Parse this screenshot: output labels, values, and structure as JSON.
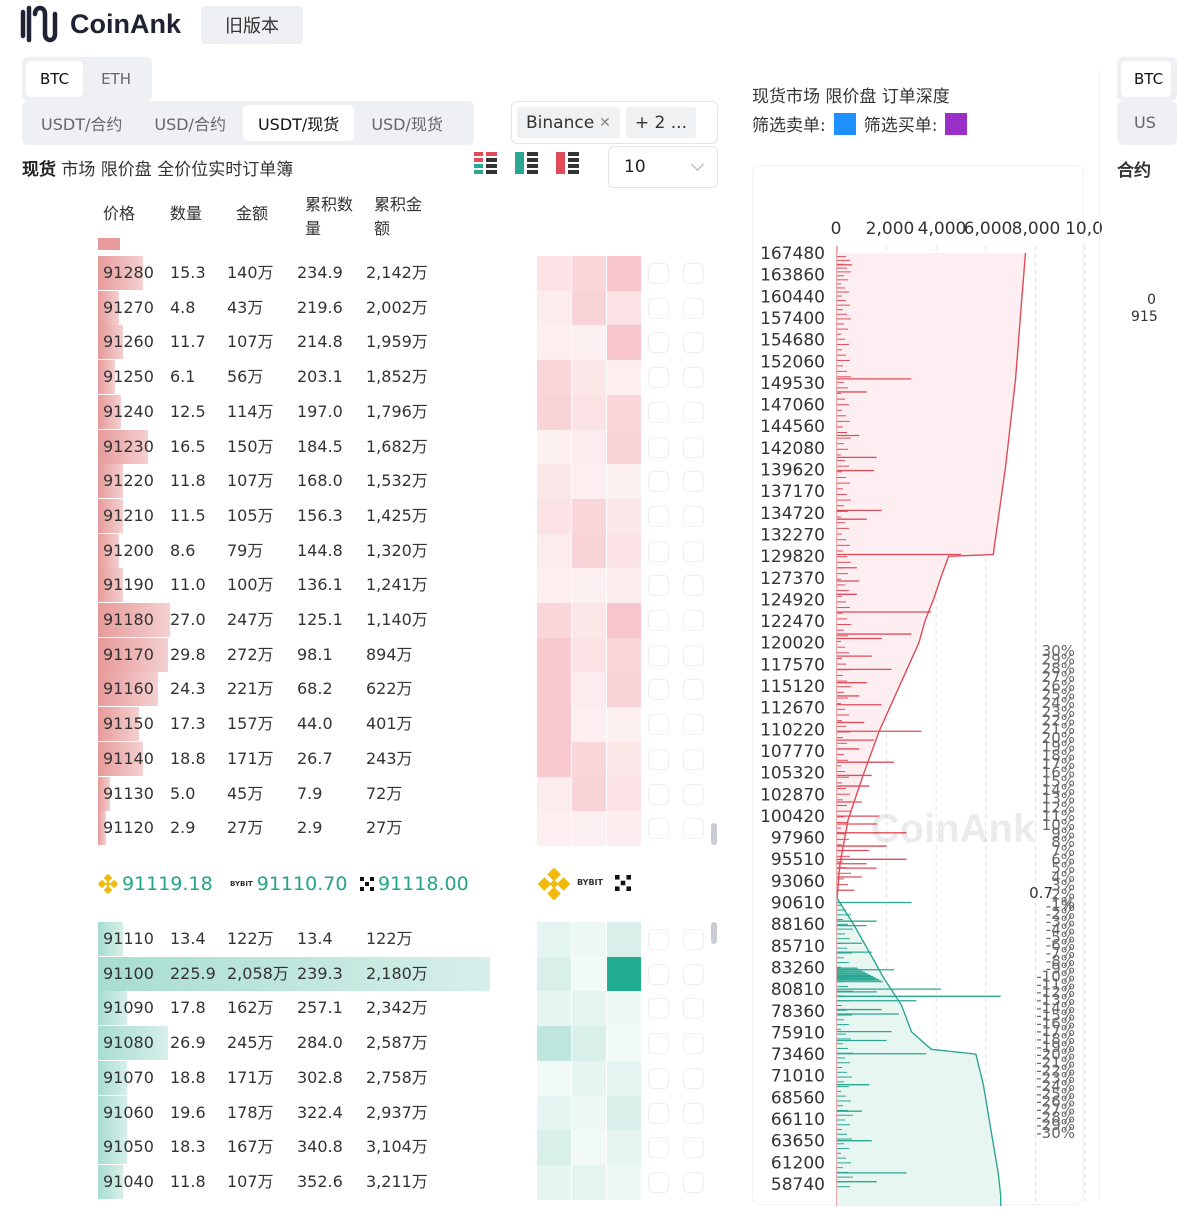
{
  "header": {
    "logo_text": "CoinAnk",
    "old_version": "旧版本"
  },
  "coin_tabs": [
    {
      "label": "BTC",
      "active": true
    },
    {
      "label": "ETH",
      "active": false
    }
  ],
  "market_tabs": [
    {
      "label": "USDT/合约",
      "active": false
    },
    {
      "label": "USD/合约",
      "active": false
    },
    {
      "label": "USDT/现货",
      "active": true
    },
    {
      "label": "USD/现货",
      "active": false
    }
  ],
  "exchange_filter": {
    "tag": "Binance",
    "more": "+ 2 ..."
  },
  "panel": {
    "title_bold": "现货",
    "title_rest": " 市场 限价盘 全价位实时订单簿",
    "depth_step": "10"
  },
  "columns": {
    "price": "价格",
    "qty": "数量",
    "amount": "金额",
    "cum_qty": "累积数量",
    "cum_amount": "累积金额"
  },
  "asks": [
    {
      "price": "91280",
      "qty": "15.3",
      "amount": "140万",
      "cum_qty": "234.9",
      "cum_amount": "2,142万",
      "bar": 0.11
    },
    {
      "price": "91270",
      "qty": "4.8",
      "amount": "43万",
      "cum_qty": "219.6",
      "cum_amount": "2,002万",
      "bar": 0.05
    },
    {
      "price": "91260",
      "qty": "11.7",
      "amount": "107万",
      "cum_qty": "214.8",
      "cum_amount": "1,959万",
      "bar": 0.06
    },
    {
      "price": "91250",
      "qty": "6.1",
      "amount": "56万",
      "cum_qty": "203.1",
      "cum_amount": "1,852万",
      "bar": 0.04
    },
    {
      "price": "91240",
      "qty": "12.5",
      "amount": "114万",
      "cum_qty": "197.0",
      "cum_amount": "1,796万",
      "bar": 0.055
    },
    {
      "price": "91230",
      "qty": "16.5",
      "amount": "150万",
      "cum_qty": "184.5",
      "cum_amount": "1,682万",
      "bar": 0.12
    },
    {
      "price": "91220",
      "qty": "11.8",
      "amount": "107万",
      "cum_qty": "168.0",
      "cum_amount": "1,532万",
      "bar": 0.06
    },
    {
      "price": "91210",
      "qty": "11.5",
      "amount": "105万",
      "cum_qty": "156.3",
      "cum_amount": "1,425万",
      "bar": 0.06
    },
    {
      "price": "91200",
      "qty": "8.6",
      "amount": "79万",
      "cum_qty": "144.8",
      "cum_amount": "1,320万",
      "bar": 0.05
    },
    {
      "price": "91190",
      "qty": "11.0",
      "amount": "100万",
      "cum_qty": "136.1",
      "cum_amount": "1,241万",
      "bar": 0.06
    },
    {
      "price": "91180",
      "qty": "27.0",
      "amount": "247万",
      "cum_qty": "125.1",
      "cum_amount": "1,140万",
      "bar": 0.175
    },
    {
      "price": "91170",
      "qty": "29.8",
      "amount": "272万",
      "cum_qty": "98.1",
      "cum_amount": "894万",
      "bar": 0.17
    },
    {
      "price": "91160",
      "qty": "24.3",
      "amount": "221万",
      "cum_qty": "68.2",
      "cum_amount": "622万",
      "bar": 0.145
    },
    {
      "price": "91150",
      "qty": "17.3",
      "amount": "157万",
      "cum_qty": "44.0",
      "cum_amount": "401万",
      "bar": 0.1
    },
    {
      "price": "91140",
      "qty": "18.8",
      "amount": "171万",
      "cum_qty": "26.7",
      "cum_amount": "243万",
      "bar": 0.11
    },
    {
      "price": "91130",
      "qty": "5.0",
      "amount": "45万",
      "cum_qty": "7.9",
      "cum_amount": "72万",
      "bar": 0.03
    },
    {
      "price": "91120",
      "qty": "2.9",
      "amount": "27万",
      "cum_qty": "2.9",
      "cum_amount": "27万",
      "bar": 0.02
    }
  ],
  "mid_prices": [
    {
      "exchange": "binance",
      "price": "91119.18"
    },
    {
      "exchange": "bybit",
      "price": "91110.70"
    },
    {
      "exchange": "okx",
      "price": "91118.00"
    }
  ],
  "bids": [
    {
      "price": "91110",
      "qty": "13.4",
      "amount": "122万",
      "cum_qty": "13.4",
      "cum_amount": "122万",
      "bar": 0.06
    },
    {
      "price": "91100",
      "qty": "225.9",
      "amount": "2,058万",
      "cum_qty": "239.3",
      "cum_amount": "2,180万",
      "bar": 0.95
    },
    {
      "price": "91090",
      "qty": "17.8",
      "amount": "162万",
      "cum_qty": "257.1",
      "cum_amount": "2,342万",
      "bar": 0.07
    },
    {
      "price": "91080",
      "qty": "26.9",
      "amount": "245万",
      "cum_qty": "284.0",
      "cum_amount": "2,587万",
      "bar": 0.17
    },
    {
      "price": "91070",
      "qty": "18.8",
      "amount": "171万",
      "cum_qty": "302.8",
      "cum_amount": "2,758万",
      "bar": 0.07
    },
    {
      "price": "91060",
      "qty": "19.6",
      "amount": "178万",
      "cum_qty": "322.4",
      "cum_amount": "2,937万",
      "bar": 0.07
    },
    {
      "price": "91050",
      "qty": "18.3",
      "amount": "167万",
      "cum_qty": "340.8",
      "cum_amount": "3,104万",
      "bar": 0.07
    },
    {
      "price": "91040",
      "qty": "11.8",
      "amount": "107万",
      "cum_qty": "352.6",
      "cum_amount": "3,211万",
      "bar": 0.06
    }
  ],
  "depth_chart": {
    "title": "现货市场 限价盘 订单深度",
    "sell_filter_label": "筛选卖单:",
    "buy_filter_label": "筛选买单:",
    "sell_color": "#1e90ff",
    "buy_color": "#9b30c8",
    "ask_color": "#e04b5a",
    "bid_color": "#2aa792",
    "watermark": "CoinAnk"
  },
  "chart_data": {
    "type": "bar",
    "orientation": "horizontal",
    "x_ticks": [
      "0",
      "2,000",
      "4,000",
      "6,000",
      "8,000",
      "10,0"
    ],
    "xlim": [
      0,
      10000
    ],
    "y_ticks": [
      "167480",
      "163860",
      "160440",
      "157400",
      "154680",
      "152060",
      "149530",
      "147060",
      "144560",
      "142080",
      "139620",
      "137170",
      "134720",
      "132270",
      "129820",
      "127370",
      "124920",
      "122470",
      "120020",
      "117570",
      "115120",
      "112670",
      "110220",
      "107770",
      "105320",
      "102870",
      "100420",
      "97960",
      "95510",
      "93060",
      "90610",
      "88160",
      "85710",
      "83260",
      "80810",
      "78360",
      "75910",
      "73460",
      "71010",
      "68560",
      "66110",
      "63650",
      "61200",
      "58740"
    ],
    "ylim": [
      57000,
      169000
    ],
    "mid_price": 91115,
    "current_label": "0.7",
    "ask_pct_labels": [
      "30%",
      "29%",
      "28%",
      "27%",
      "26%",
      "25%",
      "24%",
      "23%",
      "22%",
      "21%",
      "20%",
      "19%",
      "18%",
      "17%",
      "16%",
      "15%",
      "14%",
      "13%",
      "12%",
      "11%",
      "10%",
      "9%",
      "8%",
      "7%",
      "6%",
      "5%",
      "4%",
      "3%",
      "2%",
      "1%"
    ],
    "bid_pct_labels": [
      "-1%",
      "-2%",
      "-3%",
      "-4%",
      "-5%",
      "-6%",
      "-7%",
      "-8%",
      "-9%",
      "-10%",
      "-11%",
      "-12%",
      "-13%",
      "-14%",
      "-15%",
      "-16%",
      "-17%",
      "-18%",
      "-19%",
      "-20%",
      "-21%",
      "-22%",
      "-23%",
      "-24%",
      "-25%",
      "-26%",
      "-27%",
      "-28%",
      "-29%",
      "-30%"
    ],
    "ask_cumulative": [
      [
        91120,
        0
      ],
      [
        95000,
        120
      ],
      [
        100000,
        450
      ],
      [
        105000,
        1050
      ],
      [
        110000,
        1700
      ],
      [
        115000,
        2500
      ],
      [
        120000,
        3300
      ],
      [
        122500,
        3550
      ],
      [
        125000,
        3900
      ],
      [
        127500,
        4200
      ],
      [
        129800,
        4500
      ],
      [
        130000,
        6300
      ],
      [
        140000,
        6800
      ],
      [
        150000,
        7200
      ],
      [
        160000,
        7450
      ],
      [
        167480,
        7600
      ]
    ],
    "bid_cumulative": [
      [
        91110,
        0
      ],
      [
        88000,
        700
      ],
      [
        85000,
        1300
      ],
      [
        82000,
        1900
      ],
      [
        79000,
        2600
      ],
      [
        76000,
        3000
      ],
      [
        74000,
        3800
      ],
      [
        73460,
        5600
      ],
      [
        70000,
        5900
      ],
      [
        65000,
        6200
      ],
      [
        60000,
        6500
      ],
      [
        57500,
        6600
      ]
    ],
    "ask_levels": [
      [
        165500,
        600
      ],
      [
        150000,
        3000
      ],
      [
        148500,
        1200
      ],
      [
        143500,
        900
      ],
      [
        141000,
        1600
      ],
      [
        139500,
        1500
      ],
      [
        135000,
        1800
      ],
      [
        134000,
        1200
      ],
      [
        130000,
        5000
      ],
      [
        128500,
        800
      ],
      [
        127000,
        900
      ],
      [
        125500,
        800
      ],
      [
        123500,
        3800
      ],
      [
        121000,
        3000
      ],
      [
        120500,
        1800
      ],
      [
        118500,
        1400
      ],
      [
        117000,
        2200
      ],
      [
        115500,
        1200
      ],
      [
        114000,
        900
      ],
      [
        113000,
        1800
      ],
      [
        111000,
        1100
      ],
      [
        110000,
        3400
      ],
      [
        109000,
        1500
      ],
      [
        108000,
        900
      ],
      [
        106500,
        2300
      ],
      [
        105000,
        1400
      ],
      [
        103800,
        1300
      ],
      [
        102000,
        1000
      ],
      [
        100400,
        1700
      ],
      [
        99500,
        1600
      ],
      [
        98500,
        2800
      ],
      [
        97000,
        2000
      ],
      [
        96500,
        1300
      ],
      [
        95500,
        2800
      ],
      [
        95000,
        1200
      ],
      [
        94500,
        1600
      ],
      [
        93500,
        1000
      ],
      [
        92000,
        700
      ]
    ],
    "bid_levels": [
      [
        90610,
        3000
      ],
      [
        88500,
        1600
      ],
      [
        88000,
        1200
      ],
      [
        86000,
        1000
      ],
      [
        85000,
        1400
      ],
      [
        83000,
        2300
      ],
      [
        82000,
        1500
      ],
      [
        80810,
        4200
      ],
      [
        80500,
        1600
      ],
      [
        80000,
        6600
      ],
      [
        79500,
        3200
      ],
      [
        78500,
        1800
      ],
      [
        78000,
        2500
      ],
      [
        76000,
        2200
      ],
      [
        75000,
        2000
      ],
      [
        73500,
        3600
      ],
      [
        70000,
        1300
      ],
      [
        67000,
        1000
      ],
      [
        63650,
        1400
      ],
      [
        60000,
        2800
      ],
      [
        59000,
        1600
      ]
    ]
  },
  "far_panel": {
    "coin": "BTC",
    "market": "US",
    "title": "合约",
    "value_top": "0",
    "value_bottom": "915"
  }
}
